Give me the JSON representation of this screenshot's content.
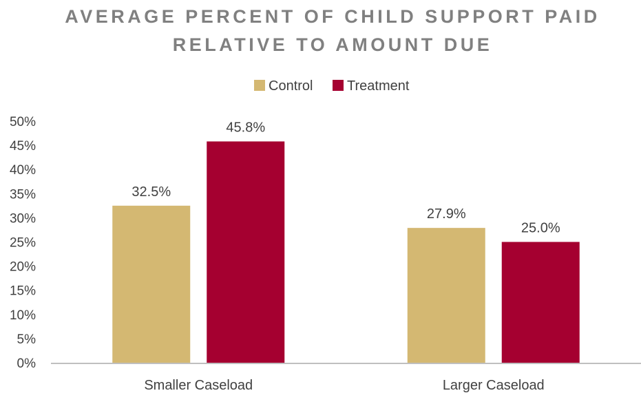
{
  "chart_data": {
    "type": "bar",
    "title_lines": [
      "AVERAGE PERCENT OF CHILD SUPPORT PAID",
      "RELATIVE TO AMOUNT DUE"
    ],
    "xlabel": "",
    "ylabel": "",
    "categories": [
      "Smaller Caseload",
      "Larger Caseload"
    ],
    "series": [
      {
        "name": "Control",
        "values": [
          32.5,
          27.9
        ],
        "labels": [
          "32.5%",
          "27.9%"
        ],
        "color": "#D4B872"
      },
      {
        "name": "Treatment",
        "values": [
          45.8,
          25.0
        ],
        "labels": [
          "45.8%",
          "25.0%"
        ],
        "color": "#A50030"
      }
    ],
    "ylim": [
      0,
      50
    ],
    "yticks": [
      0,
      5,
      10,
      15,
      20,
      25,
      30,
      35,
      40,
      45,
      50
    ],
    "ytick_labels": [
      "0%",
      "5%",
      "10%",
      "15%",
      "20%",
      "25%",
      "30%",
      "35%",
      "40%",
      "45%",
      "50%"
    ],
    "grid": false,
    "legend_position": "top"
  }
}
